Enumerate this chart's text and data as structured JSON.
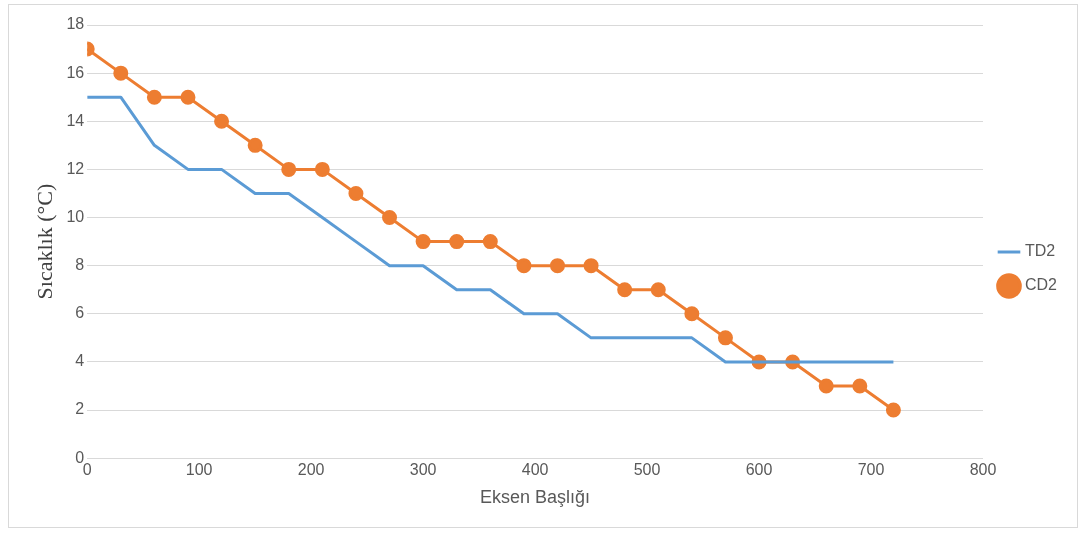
{
  "chart_data": {
    "type": "line",
    "xlabel": "Eksen Başlığı",
    "ylabel": "Sıcaklık (°C)",
    "xlim": [
      0,
      800
    ],
    "xticks": [
      0,
      100,
      200,
      300,
      400,
      500,
      600,
      700,
      800
    ],
    "ylim": [
      0,
      18
    ],
    "yticks": [
      0,
      2,
      4,
      6,
      8,
      10,
      12,
      14,
      16,
      18
    ],
    "grid": "y",
    "legend": "right",
    "line_style": "solid",
    "x": [
      0,
      30,
      60,
      90,
      120,
      150,
      180,
      210,
      240,
      270,
      300,
      330,
      360,
      390,
      420,
      450,
      480,
      510,
      540,
      570,
      600,
      630,
      660,
      690,
      720
    ],
    "series": [
      {
        "name": "TD2",
        "color": "#5b9bd5",
        "marker": "none",
        "values": [
          15,
          15,
          13,
          12,
          12,
          11,
          11,
          10,
          9,
          8,
          8,
          7,
          7,
          6,
          6,
          5,
          5,
          5,
          5,
          4,
          4,
          4,
          4,
          4,
          4
        ]
      },
      {
        "name": "CD2",
        "color": "#ed7d31",
        "marker": "circle",
        "values": [
          17,
          16,
          15,
          15,
          14,
          13,
          12,
          12,
          11,
          10,
          9,
          9,
          9,
          8,
          8,
          8,
          7,
          7,
          6,
          5,
          4,
          4,
          3,
          3,
          2
        ]
      }
    ]
  }
}
